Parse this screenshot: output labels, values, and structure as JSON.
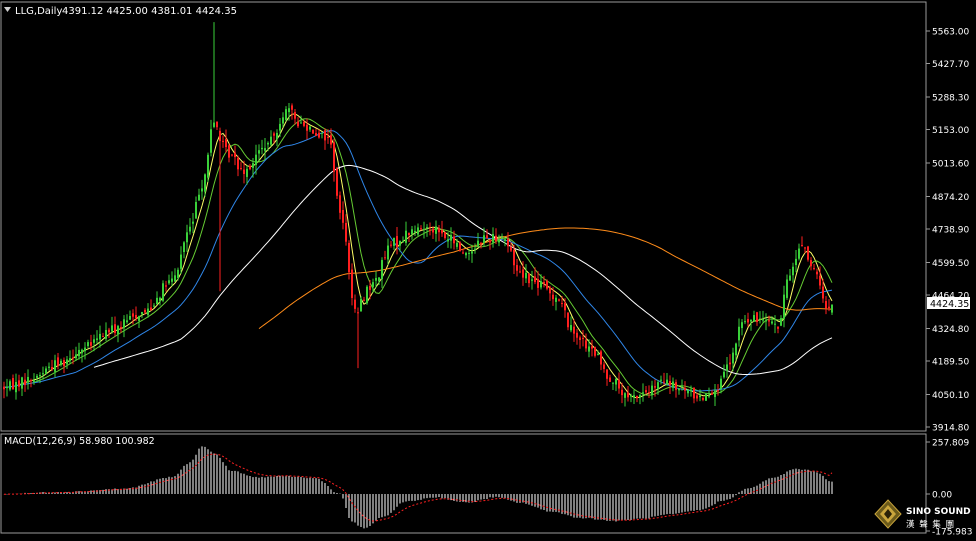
{
  "header": {
    "symbol": "LLG,Daily",
    "ohlc": "4391.12 4425.00 4381.01 4424.35",
    "triangle_icon": "dropdown-triangle-icon"
  },
  "price_axis": {
    "ticks": [
      "5563.00",
      "5427.70",
      "5288.30",
      "5153.00",
      "5013.60",
      "4874.20",
      "4738.90",
      "4599.50",
      "4464.20",
      "4324.80",
      "4189.50",
      "4050.10",
      "3914.80"
    ],
    "current_price": "4424.35"
  },
  "macd": {
    "label": "MACD(12,26,9) 58.980 100.982",
    "ticks": [
      "257.809",
      "0.00",
      "-175.983"
    ]
  },
  "logo": {
    "brand": "SINO SOUND",
    "chinese": "漢 聲 集 團",
    "icon": "diamond-logo-icon"
  },
  "colors": {
    "background": "#000000",
    "bull": "#3ad13a",
    "bear": "#ff1f1f",
    "ma_fast": "#ffff66",
    "ma_mid": "#66cc33",
    "ma_slow": "#2f86e8",
    "ma_long": "#ffffff",
    "ma_verylong": "#ff8c1a",
    "macd_hist": "#ffffff",
    "macd_signal": "#ff2020"
  },
  "chart_data": {
    "type": "candlestick",
    "timeframe": "Daily",
    "ylim": [
      3914.8,
      5630
    ],
    "macd_ylim": [
      -175.983,
      257.809
    ],
    "anchors_price": [
      [
        0,
        4080
      ],
      [
        8,
        4110
      ],
      [
        18,
        4180
      ],
      [
        26,
        4240
      ],
      [
        36,
        4320
      ],
      [
        46,
        4390
      ],
      [
        56,
        4520
      ],
      [
        62,
        4740
      ],
      [
        66,
        4930
      ],
      [
        70,
        5180
      ],
      [
        74,
        5060
      ],
      [
        80,
        4990
      ],
      [
        88,
        5090
      ],
      [
        94,
        5230
      ],
      [
        100,
        5170
      ],
      [
        108,
        5120
      ],
      [
        113,
        4760
      ],
      [
        117,
        4390
      ],
      [
        122,
        4500
      ],
      [
        130,
        4680
      ],
      [
        136,
        4730
      ],
      [
        142,
        4750
      ],
      [
        148,
        4700
      ],
      [
        154,
        4640
      ],
      [
        160,
        4700
      ],
      [
        166,
        4710
      ],
      [
        172,
        4560
      ],
      [
        178,
        4510
      ],
      [
        184,
        4460
      ],
      [
        190,
        4310
      ],
      [
        196,
        4230
      ],
      [
        202,
        4120
      ],
      [
        208,
        4030
      ],
      [
        214,
        4060
      ],
      [
        220,
        4100
      ],
      [
        226,
        4070
      ],
      [
        232,
        4040
      ],
      [
        238,
        4080
      ],
      [
        242,
        4180
      ],
      [
        246,
        4350
      ],
      [
        250,
        4360
      ],
      [
        254,
        4380
      ],
      [
        258,
        4330
      ],
      [
        262,
        4560
      ],
      [
        266,
        4680
      ],
      [
        270,
        4560
      ],
      [
        274,
        4420
      ],
      [
        276,
        4424
      ]
    ],
    "anchors_macd": [
      [
        0,
        0
      ],
      [
        20,
        10
      ],
      [
        40,
        25
      ],
      [
        56,
        80
      ],
      [
        62,
        150
      ],
      [
        66,
        230
      ],
      [
        70,
        195
      ],
      [
        76,
        110
      ],
      [
        84,
        80
      ],
      [
        94,
        85
      ],
      [
        104,
        75
      ],
      [
        112,
        0
      ],
      [
        116,
        -130
      ],
      [
        120,
        -160
      ],
      [
        126,
        -110
      ],
      [
        134,
        -35
      ],
      [
        144,
        -15
      ],
      [
        154,
        -40
      ],
      [
        164,
        -15
      ],
      [
        172,
        -40
      ],
      [
        182,
        -80
      ],
      [
        192,
        -110
      ],
      [
        204,
        -125
      ],
      [
        212,
        -115
      ],
      [
        222,
        -95
      ],
      [
        232,
        -75
      ],
      [
        240,
        -30
      ],
      [
        248,
        25
      ],
      [
        256,
        75
      ],
      [
        264,
        120
      ],
      [
        270,
        110
      ],
      [
        276,
        58.98
      ]
    ],
    "candle_count": 277
  }
}
